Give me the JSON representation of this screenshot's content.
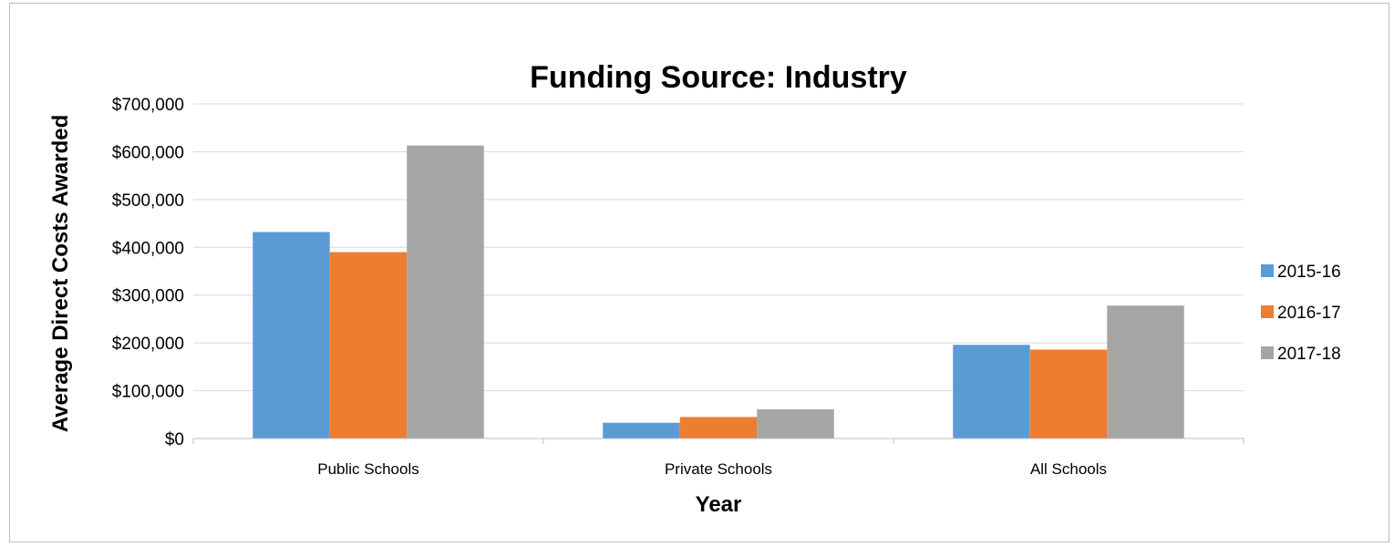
{
  "chart_data": {
    "type": "bar",
    "title": "Funding Source: Industry",
    "xlabel": "Year",
    "ylabel": "Average Direct Costs Awarded",
    "categories": [
      "Public Schools",
      "Private Schools",
      "All Schools"
    ],
    "series": [
      {
        "name": "2015-16",
        "color": "#5b9bd5",
        "values": [
          432000,
          33000,
          196000
        ]
      },
      {
        "name": "2016-17",
        "color": "#ed7d31",
        "values": [
          390000,
          45000,
          186000
        ]
      },
      {
        "name": "2017-18",
        "color": "#a5a5a5",
        "values": [
          613000,
          61000,
          278000
        ]
      }
    ],
    "ylim": [
      0,
      700000
    ],
    "yticks": [
      0,
      100000,
      200000,
      300000,
      400000,
      500000,
      600000,
      700000
    ],
    "ytick_labels": [
      "$0",
      "$100,000",
      "$200,000",
      "$300,000",
      "$400,000",
      "$500,000",
      "$600,000",
      "$700,000"
    ],
    "grid": true,
    "legend_position": "right"
  }
}
